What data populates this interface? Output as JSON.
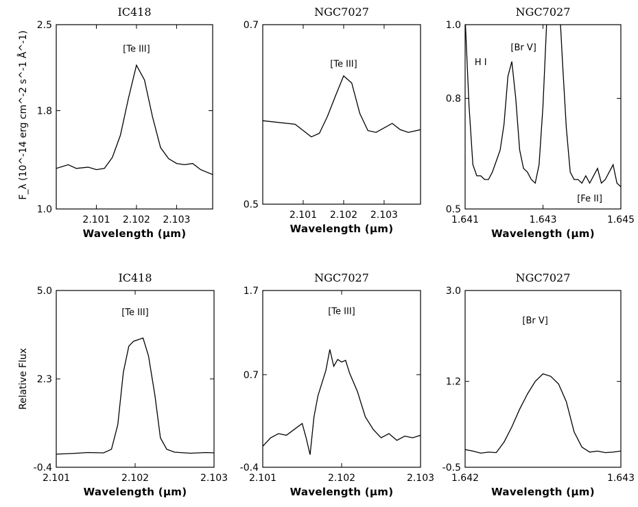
{
  "figure": {
    "top_ylabel": "F_λ (10^-14 erg cm^-2 s^-1 Å^-1)",
    "bottom_ylabel": "Relative Flux"
  },
  "chart_data": [
    {
      "type": "line",
      "title": "IC418",
      "xlabel": "Wavelength (μm)",
      "xlim": [
        2.1,
        2.1039
      ],
      "ylim": [
        1.0,
        2.5
      ],
      "xticks": [
        "2.101",
        "2.102",
        "2.103"
      ],
      "xtick_values": [
        2.101,
        2.102,
        2.103
      ],
      "yticks": [
        "1.0",
        "1.8",
        "2.5"
      ],
      "ytick_values": [
        1.0,
        1.8,
        2.5
      ],
      "annotations": [
        {
          "text": "[Te III]",
          "x": 2.102,
          "y": 2.28
        }
      ],
      "series": [
        {
          "x": [
            2.1,
            2.1003,
            2.1005,
            2.1008,
            2.101,
            2.1012,
            2.1014,
            2.1016,
            2.1018,
            2.102,
            2.1022,
            2.1024,
            2.1026,
            2.1028,
            2.103,
            2.1032,
            2.1034,
            2.1036,
            2.1039
          ],
          "y": [
            1.33,
            1.36,
            1.33,
            1.34,
            1.32,
            1.33,
            1.42,
            1.6,
            1.9,
            2.17,
            2.05,
            1.75,
            1.5,
            1.41,
            1.37,
            1.36,
            1.37,
            1.32,
            1.28
          ]
        }
      ]
    },
    {
      "type": "line",
      "title": "NGC7027",
      "xlabel": "Wavelength (μm)",
      "xlim": [
        2.1,
        2.1039
      ],
      "ylim": [
        0.5,
        0.7
      ],
      "xticks": [
        "2.101",
        "2.102",
        "2.103"
      ],
      "xtick_values": [
        2.101,
        2.102,
        2.103
      ],
      "yticks": [
        "0.5",
        "0.7"
      ],
      "ytick_values": [
        0.5,
        0.7
      ],
      "annotations": [
        {
          "text": "[Te III]",
          "x": 2.102,
          "y": 0.653
        }
      ],
      "series": [
        {
          "x": [
            2.1,
            2.1008,
            2.1012,
            2.1014,
            2.1016,
            2.1018,
            2.102,
            2.1022,
            2.1024,
            2.1026,
            2.1028,
            2.103,
            2.1032,
            2.1034,
            2.1036,
            2.1039
          ],
          "y": [
            0.593,
            0.589,
            0.575,
            0.579,
            0.598,
            0.621,
            0.643,
            0.635,
            0.601,
            0.582,
            0.58,
            0.585,
            0.59,
            0.583,
            0.58,
            0.583
          ]
        }
      ]
    },
    {
      "type": "line",
      "title": "NGC7027",
      "xlabel": "Wavelength (μm)",
      "xlim": [
        1.641,
        1.645
      ],
      "ylim": [
        0.5,
        1.0
      ],
      "xticks": [
        "1.641",
        "1.643",
        "1.645"
      ],
      "xtick_values": [
        1.641,
        1.643,
        1.645
      ],
      "yticks": [
        "0.5",
        "0.8",
        "1.0"
      ],
      "ytick_values": [
        0.5,
        0.8,
        1.0
      ],
      "annotations": [
        {
          "text": "H I",
          "x": 1.6414,
          "y": 0.89
        },
        {
          "text": "[Br V]",
          "x": 1.6425,
          "y": 0.93
        },
        {
          "text": "[Fe II]",
          "x": 1.6442,
          "y": 0.52
        }
      ],
      "series": [
        {
          "x": [
            1.641,
            1.6411,
            1.6412,
            1.6413,
            1.6414,
            1.6415,
            1.6416,
            1.6417,
            1.6418,
            1.6419,
            1.642,
            1.6421,
            1.6422,
            1.6423,
            1.6424,
            1.6425,
            1.6426,
            1.6427,
            1.6428,
            1.6429,
            1.643,
            1.6431,
            1.6432,
            1.6433,
            1.6434,
            1.6435,
            1.6436,
            1.6437,
            1.6438,
            1.6439,
            1.644,
            1.6441,
            1.6442,
            1.6443,
            1.6444,
            1.6445,
            1.6446,
            1.6447,
            1.6448,
            1.6449,
            1.645
          ],
          "y": [
            1.02,
            0.78,
            0.62,
            0.59,
            0.59,
            0.58,
            0.58,
            0.6,
            0.63,
            0.66,
            0.73,
            0.86,
            0.9,
            0.8,
            0.66,
            0.61,
            0.6,
            0.58,
            0.57,
            0.62,
            0.78,
            1.02,
            1.25,
            1.3,
            1.1,
            0.9,
            0.72,
            0.6,
            0.58,
            0.58,
            0.57,
            0.59,
            0.57,
            0.59,
            0.61,
            0.57,
            0.58,
            0.6,
            0.62,
            0.57,
            0.56
          ]
        }
      ]
    },
    {
      "type": "line",
      "title": "IC418",
      "xlabel": "Wavelength (μm)",
      "xlim": [
        2.101,
        2.103
      ],
      "ylim": [
        -0.4,
        5.0
      ],
      "xticks": [
        "2.101",
        "2.102",
        "2.103"
      ],
      "xtick_values": [
        2.101,
        2.102,
        2.103
      ],
      "yticks": [
        "-0.4",
        "2.3",
        "5.0"
      ],
      "ytick_values": [
        -0.4,
        2.3,
        5.0
      ],
      "annotations": [
        {
          "text": "[Te III]",
          "x": 2.102,
          "y": 4.25
        }
      ],
      "series": [
        {
          "x": [
            2.101,
            2.1012,
            2.1014,
            2.1016,
            2.1017,
            2.10178,
            2.10185,
            2.10192,
            2.10198,
            2.10204,
            2.1021,
            2.10217,
            2.10225,
            2.10232,
            2.1024,
            2.1025,
            2.1027,
            2.1029,
            2.103
          ],
          "y": [
            0.0,
            0.02,
            0.05,
            0.04,
            0.15,
            0.9,
            2.5,
            3.3,
            3.45,
            3.5,
            3.55,
            3.0,
            1.8,
            0.5,
            0.15,
            0.06,
            0.03,
            0.05,
            0.04
          ]
        }
      ]
    },
    {
      "type": "line",
      "title": "NGC7027",
      "xlabel": "Wavelength (μm)",
      "xlim": [
        2.101,
        2.103
      ],
      "ylim": [
        -0.4,
        1.7
      ],
      "xticks": [
        "2.101",
        "2.102",
        "2.103"
      ],
      "xtick_values": [
        2.101,
        2.102,
        2.103
      ],
      "yticks": [
        "-0.4",
        "0.7",
        "1.7"
      ],
      "ytick_values": [
        -0.4,
        0.7,
        1.7
      ],
      "annotations": [
        {
          "text": "[Te III]",
          "x": 2.102,
          "y": 1.42
        }
      ],
      "series": [
        {
          "x": [
            2.101,
            2.1011,
            2.1012,
            2.1013,
            2.1014,
            2.1015,
            2.10155,
            2.1016,
            2.10165,
            2.1017,
            2.1018,
            2.10185,
            2.1019,
            2.10195,
            2.102,
            2.10205,
            2.1021,
            2.1022,
            2.1023,
            2.1024,
            2.1025,
            2.1026,
            2.1027,
            2.1028,
            2.1029,
            2.103
          ],
          "y": [
            -0.15,
            -0.05,
            0.0,
            -0.02,
            0.05,
            0.12,
            -0.05,
            -0.25,
            0.2,
            0.45,
            0.75,
            1.0,
            0.8,
            0.88,
            0.85,
            0.87,
            0.72,
            0.5,
            0.2,
            0.05,
            -0.05,
            0.0,
            -0.08,
            -0.03,
            -0.05,
            -0.02
          ]
        }
      ]
    },
    {
      "type": "line",
      "title": "NGC7027",
      "xlabel": "Wavelength (μm)",
      "xlim": [
        1.642,
        1.643
      ],
      "ylim": [
        -0.5,
        3.0
      ],
      "xticks": [
        "1.642",
        "1.643"
      ],
      "xtick_values": [
        1.642,
        1.643
      ],
      "yticks": [
        "-0.5",
        "1.2",
        "3.0"
      ],
      "ytick_values": [
        -0.5,
        1.2,
        3.0
      ],
      "annotations": [
        {
          "text": "[Br V]",
          "x": 1.64245,
          "y": 2.35
        }
      ],
      "series": [
        {
          "x": [
            1.642,
            1.64205,
            1.6421,
            1.64215,
            1.6422,
            1.64225,
            1.6423,
            1.64235,
            1.6424,
            1.64245,
            1.6425,
            1.64255,
            1.6426,
            1.64265,
            1.6427,
            1.64275,
            1.6428,
            1.64285,
            1.6429,
            1.64295,
            1.643
          ],
          "y": [
            -0.15,
            -0.18,
            -0.22,
            -0.2,
            -0.21,
            0.0,
            0.3,
            0.65,
            0.95,
            1.2,
            1.35,
            1.3,
            1.15,
            0.8,
            0.2,
            -0.1,
            -0.2,
            -0.18,
            -0.21,
            -0.2,
            -0.18
          ]
        }
      ]
    }
  ]
}
